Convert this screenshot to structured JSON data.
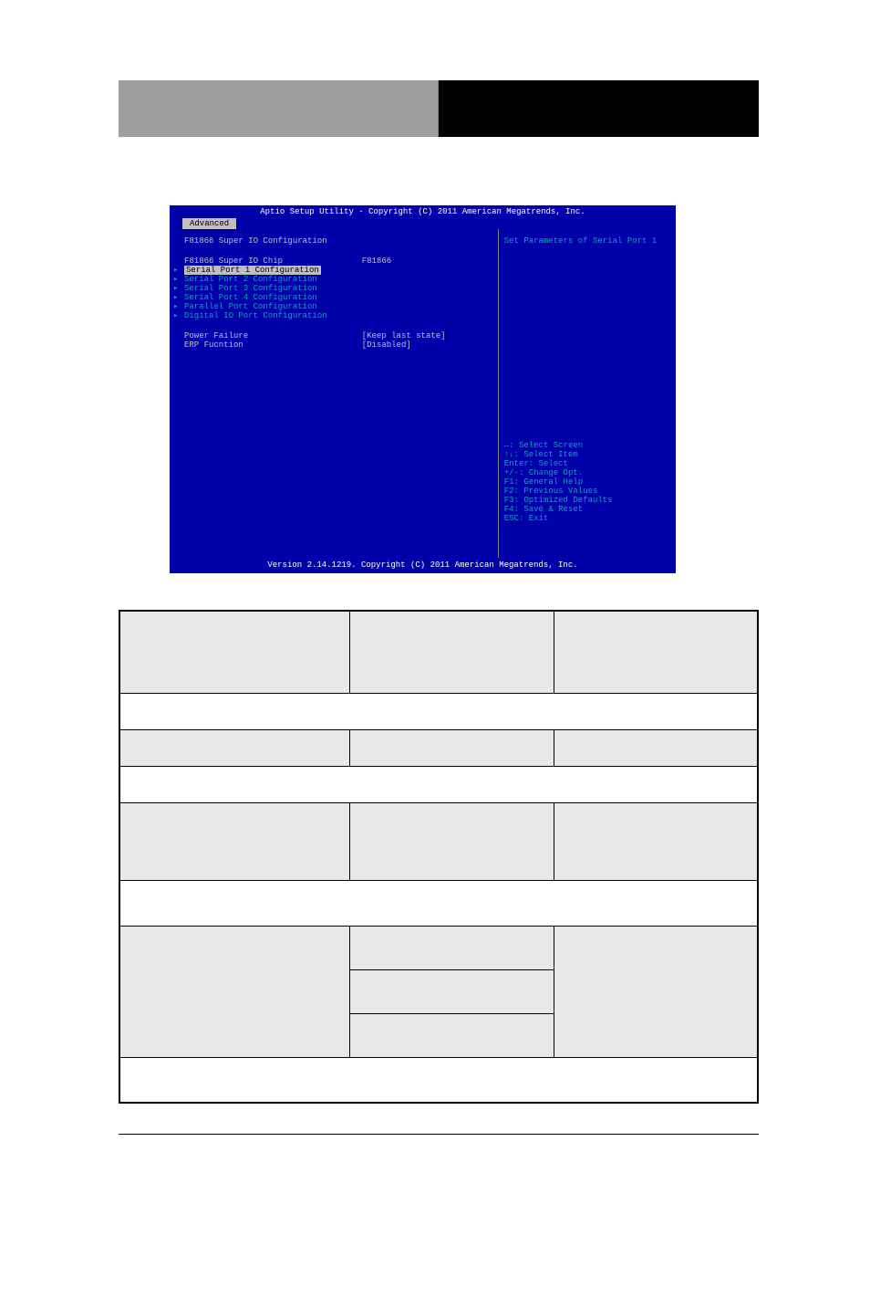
{
  "topBar": {
    "leftBg": "#9e9e9e",
    "rightBg": "#000000"
  },
  "bios": {
    "header": "Aptio Setup Utility - Copyright (C) 2011 American Megatrends, Inc.",
    "tab": "Advanced",
    "sectionTitle": "F81866 Super IO Configuration",
    "chipRow": {
      "label": "F81866 Super IO Chip",
      "value": "F81866"
    },
    "submenus": [
      "Serial Port 1 Configuration",
      "Serial Port 2 Configuration",
      "Serial Port 3 Configuration",
      "Serial Port 4 Configuration",
      "Parallel Port Configuration",
      "Digital IO Port Configuration"
    ],
    "settings": [
      {
        "label": "Power Failure",
        "value": "[Keep last state]"
      },
      {
        "label": "ERP Fucntion",
        "value": "[Disabled]"
      }
    ],
    "helpText": "Set Parameters of Serial Port 1",
    "keys": [
      "↔: Select Screen",
      "↑↓: Select Item",
      "Enter: Select",
      "+/-: Change Opt.",
      "F1: General Help",
      "F2: Previous Values",
      "F3: Optimized Defaults",
      "F4: Save & Reset",
      "ESC: Exit"
    ],
    "footer": "Version 2.14.1219. Copyright (C) 2011 American Megatrends, Inc.",
    "colors": {
      "background": "#0000aa",
      "text": "#c0c0c0",
      "highlight": "#00aaaa",
      "selectedBg": "#c0c0c0",
      "selectedFg": "#000000",
      "white": "#ffffff"
    }
  },
  "docTable": {
    "headerBg": "#e8e8e8",
    "whiteBg": "#ffffff",
    "borderColor": "#000000"
  }
}
